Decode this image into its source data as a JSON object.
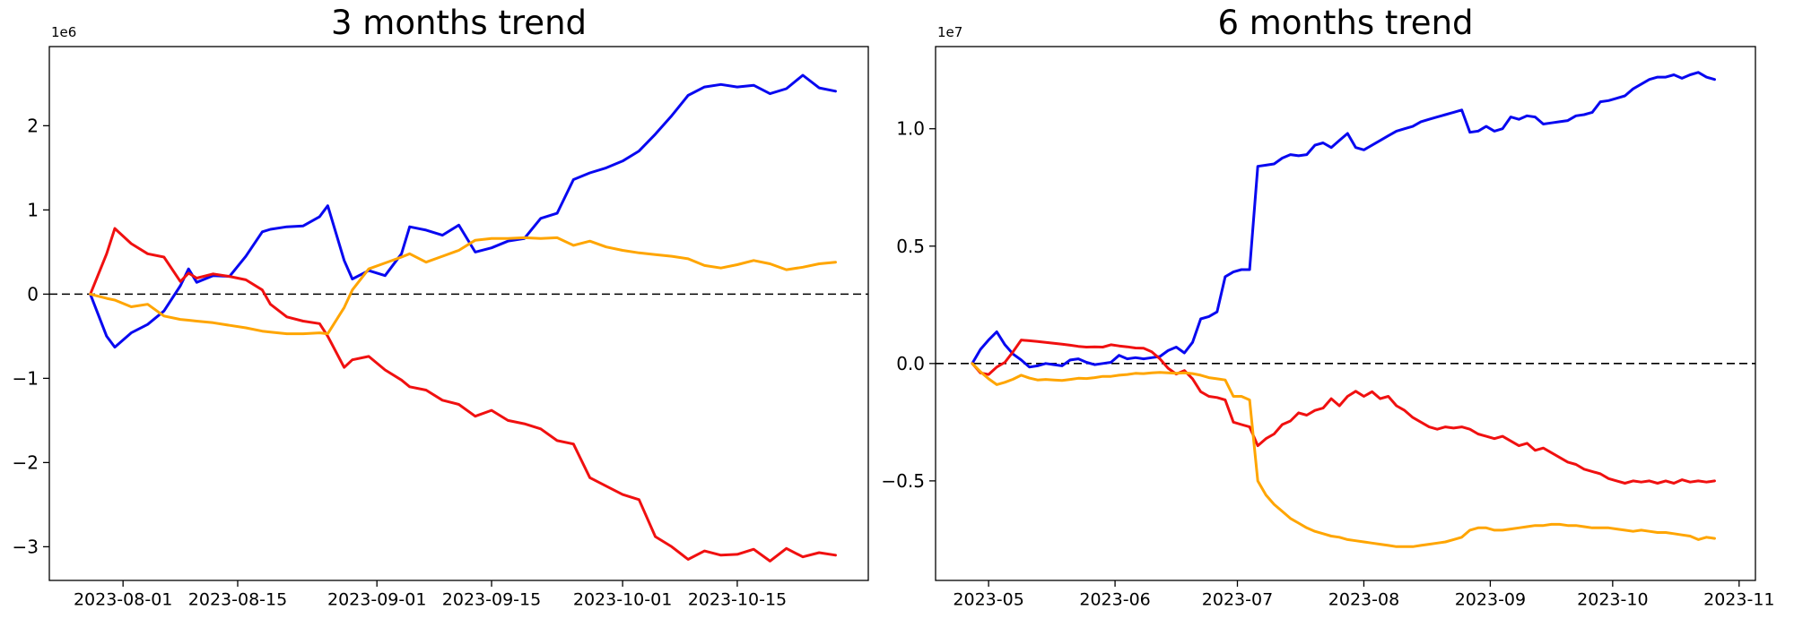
{
  "figure": {
    "background": "#ffffff",
    "text_color": "#000000",
    "axis_color": "#000000"
  },
  "chart_data": [
    {
      "type": "line",
      "title": "3 months trend",
      "y_offset_label": "1e6",
      "y_unit_multiplier": 1000000,
      "grid": false,
      "legend_position": "none",
      "zero_line_dashed": true,
      "xlim": [
        "2023-07-23",
        "2023-10-31"
      ],
      "ylim": [
        -3.4,
        2.94
      ],
      "x_ticks": [
        {
          "label": "2023-08-01",
          "date": "2023-08-01"
        },
        {
          "label": "2023-08-15",
          "date": "2023-08-15"
        },
        {
          "label": "2023-09-01",
          "date": "2023-09-01"
        },
        {
          "label": "2023-09-15",
          "date": "2023-09-15"
        },
        {
          "label": "2023-10-01",
          "date": "2023-10-01"
        },
        {
          "label": "2023-10-15",
          "date": "2023-10-15"
        }
      ],
      "y_ticks": [
        {
          "label": "2",
          "value": 2
        },
        {
          "label": "1",
          "value": 1
        },
        {
          "label": "0",
          "value": 0
        },
        {
          "label": "−1",
          "value": -1
        },
        {
          "label": "−2",
          "value": -2
        },
        {
          "label": "−3",
          "value": -3
        }
      ],
      "x": [
        "2023-07-28",
        "2023-07-30",
        "2023-07-31",
        "2023-08-02",
        "2023-08-04",
        "2023-08-06",
        "2023-08-08",
        "2023-08-09",
        "2023-08-10",
        "2023-08-12",
        "2023-08-14",
        "2023-08-16",
        "2023-08-18",
        "2023-08-19",
        "2023-08-21",
        "2023-08-23",
        "2023-08-25",
        "2023-08-26",
        "2023-08-28",
        "2023-08-29",
        "2023-08-31",
        "2023-09-02",
        "2023-09-04",
        "2023-09-05",
        "2023-09-07",
        "2023-09-09",
        "2023-09-11",
        "2023-09-13",
        "2023-09-15",
        "2023-09-17",
        "2023-09-19",
        "2023-09-21",
        "2023-09-23",
        "2023-09-25",
        "2023-09-27",
        "2023-09-29",
        "2023-10-01",
        "2023-10-03",
        "2023-10-05",
        "2023-10-07",
        "2023-10-09",
        "2023-10-11",
        "2023-10-13",
        "2023-10-15",
        "2023-10-17",
        "2023-10-19",
        "2023-10-21",
        "2023-10-23",
        "2023-10-25",
        "2023-10-27"
      ],
      "series": [
        {
          "name": "blue",
          "color": "#0808f0",
          "values": [
            0.0,
            -0.5,
            -0.63,
            -0.46,
            -0.36,
            -0.2,
            0.1,
            0.3,
            0.14,
            0.22,
            0.21,
            0.45,
            0.74,
            0.77,
            0.8,
            0.81,
            0.92,
            1.05,
            0.4,
            0.18,
            0.28,
            0.22,
            0.48,
            0.8,
            0.76,
            0.7,
            0.82,
            0.5,
            0.55,
            0.63,
            0.66,
            0.9,
            0.96,
            1.36,
            1.44,
            1.5,
            1.58,
            1.7,
            1.9,
            2.12,
            2.36,
            2.46,
            2.49,
            2.46,
            2.48,
            2.38,
            2.44,
            2.6,
            2.45,
            2.41
          ]
        },
        {
          "name": "red",
          "color": "#f01010",
          "values": [
            0.0,
            0.48,
            0.78,
            0.6,
            0.48,
            0.44,
            0.15,
            0.25,
            0.19,
            0.24,
            0.21,
            0.17,
            0.05,
            -0.12,
            -0.27,
            -0.32,
            -0.35,
            -0.5,
            -0.87,
            -0.78,
            -0.74,
            -0.9,
            -1.02,
            -1.1,
            -1.14,
            -1.26,
            -1.31,
            -1.45,
            -1.38,
            -1.5,
            -1.54,
            -1.6,
            -1.74,
            -1.78,
            -2.18,
            -2.28,
            -2.38,
            -2.44,
            -2.88,
            -3.0,
            -3.15,
            -3.05,
            -3.1,
            -3.09,
            -3.03,
            -3.17,
            -3.02,
            -3.12,
            -3.07,
            -3.1
          ]
        },
        {
          "name": "orange",
          "color": "#ffa500",
          "values": [
            0.0,
            -0.05,
            -0.07,
            -0.15,
            -0.12,
            -0.26,
            -0.3,
            -0.31,
            -0.32,
            -0.34,
            -0.37,
            -0.4,
            -0.44,
            -0.45,
            -0.47,
            -0.47,
            -0.46,
            -0.47,
            -0.16,
            0.05,
            0.3,
            0.37,
            0.44,
            0.48,
            0.38,
            0.45,
            0.52,
            0.64,
            0.66,
            0.66,
            0.67,
            0.66,
            0.67,
            0.58,
            0.63,
            0.56,
            0.52,
            0.49,
            0.47,
            0.45,
            0.42,
            0.34,
            0.31,
            0.35,
            0.4,
            0.36,
            0.29,
            0.32,
            0.36,
            0.38
          ]
        }
      ]
    },
    {
      "type": "line",
      "title": "6 months trend",
      "y_offset_label": "1e7",
      "y_unit_multiplier": 10000000,
      "grid": false,
      "legend_position": "none",
      "zero_line_dashed": true,
      "xlim": [
        "2023-04-18",
        "2023-11-05"
      ],
      "ylim": [
        -0.924,
        1.35
      ],
      "x_ticks": [
        {
          "label": "2023-05",
          "date": "2023-05-01"
        },
        {
          "label": "2023-06",
          "date": "2023-06-01"
        },
        {
          "label": "2023-07",
          "date": "2023-07-01"
        },
        {
          "label": "2023-08",
          "date": "2023-08-01"
        },
        {
          "label": "2023-09",
          "date": "2023-09-01"
        },
        {
          "label": "2023-10",
          "date": "2023-10-01"
        },
        {
          "label": "2023-11",
          "date": "2023-11-01"
        }
      ],
      "y_ticks": [
        {
          "label": "1.0",
          "value": 1.0
        },
        {
          "label": "0.5",
          "value": 0.5
        },
        {
          "label": "0.0",
          "value": 0.0
        },
        {
          "label": "−0.5",
          "value": -0.5
        }
      ],
      "x": [
        "2023-04-27",
        "2023-04-29",
        "2023-05-01",
        "2023-05-03",
        "2023-05-05",
        "2023-05-07",
        "2023-05-09",
        "2023-05-11",
        "2023-05-13",
        "2023-05-15",
        "2023-05-17",
        "2023-05-19",
        "2023-05-21",
        "2023-05-23",
        "2023-05-25",
        "2023-05-27",
        "2023-05-29",
        "2023-05-31",
        "2023-06-02",
        "2023-06-04",
        "2023-06-06",
        "2023-06-08",
        "2023-06-10",
        "2023-06-12",
        "2023-06-14",
        "2023-06-16",
        "2023-06-18",
        "2023-06-20",
        "2023-06-22",
        "2023-06-24",
        "2023-06-26",
        "2023-06-28",
        "2023-06-30",
        "2023-07-02",
        "2023-07-04",
        "2023-07-06",
        "2023-07-08",
        "2023-07-10",
        "2023-07-12",
        "2023-07-14",
        "2023-07-16",
        "2023-07-18",
        "2023-07-20",
        "2023-07-22",
        "2023-07-24",
        "2023-07-26",
        "2023-07-28",
        "2023-07-30",
        "2023-08-01",
        "2023-08-03",
        "2023-08-05",
        "2023-08-07",
        "2023-08-09",
        "2023-08-11",
        "2023-08-13",
        "2023-08-15",
        "2023-08-17",
        "2023-08-19",
        "2023-08-21",
        "2023-08-23",
        "2023-08-25",
        "2023-08-27",
        "2023-08-29",
        "2023-08-31",
        "2023-09-02",
        "2023-09-04",
        "2023-09-06",
        "2023-09-08",
        "2023-09-10",
        "2023-09-12",
        "2023-09-14",
        "2023-09-16",
        "2023-09-18",
        "2023-09-20",
        "2023-09-22",
        "2023-09-24",
        "2023-09-26",
        "2023-09-28",
        "2023-09-30",
        "2023-10-02",
        "2023-10-04",
        "2023-10-06",
        "2023-10-08",
        "2023-10-10",
        "2023-10-12",
        "2023-10-14",
        "2023-10-16",
        "2023-10-18",
        "2023-10-20",
        "2023-10-22",
        "2023-10-24",
        "2023-10-26"
      ],
      "series": [
        {
          "name": "blue",
          "color": "#0808f0",
          "values": [
            0.0,
            0.06,
            0.1,
            0.135,
            0.08,
            0.04,
            0.015,
            -0.015,
            -0.01,
            0.0,
            -0.005,
            -0.01,
            0.015,
            0.02,
            0.005,
            -0.005,
            0.0,
            0.005,
            0.035,
            0.02,
            0.025,
            0.02,
            0.025,
            0.03,
            0.055,
            0.07,
            0.045,
            0.09,
            0.19,
            0.2,
            0.22,
            0.37,
            0.39,
            0.4,
            0.4,
            0.84,
            0.845,
            0.85,
            0.875,
            0.89,
            0.885,
            0.89,
            0.93,
            0.94,
            0.92,
            0.95,
            0.98,
            0.92,
            0.91,
            0.93,
            0.95,
            0.97,
            0.99,
            1.0,
            1.01,
            1.03,
            1.04,
            1.05,
            1.06,
            1.07,
            1.08,
            0.985,
            0.99,
            1.01,
            0.99,
            1.0,
            1.05,
            1.04,
            1.055,
            1.05,
            1.02,
            1.025,
            1.03,
            1.035,
            1.055,
            1.06,
            1.07,
            1.115,
            1.12,
            1.13,
            1.14,
            1.17,
            1.19,
            1.21,
            1.22,
            1.22,
            1.23,
            1.215,
            1.23,
            1.24,
            1.22,
            1.21
          ]
        },
        {
          "name": "red",
          "color": "#f01010",
          "values": [
            0.0,
            -0.04,
            -0.047,
            -0.015,
            0.005,
            0.05,
            0.1,
            0.097,
            0.094,
            0.09,
            0.086,
            0.082,
            0.078,
            0.073,
            0.07,
            0.071,
            0.07,
            0.08,
            0.075,
            0.071,
            0.066,
            0.065,
            0.05,
            0.02,
            -0.02,
            -0.045,
            -0.03,
            -0.065,
            -0.12,
            -0.14,
            -0.145,
            -0.155,
            -0.25,
            -0.26,
            -0.27,
            -0.35,
            -0.32,
            -0.3,
            -0.26,
            -0.245,
            -0.21,
            -0.22,
            -0.2,
            -0.19,
            -0.15,
            -0.18,
            -0.14,
            -0.118,
            -0.14,
            -0.12,
            -0.15,
            -0.14,
            -0.18,
            -0.2,
            -0.23,
            -0.25,
            -0.27,
            -0.28,
            -0.27,
            -0.275,
            -0.27,
            -0.28,
            -0.3,
            -0.31,
            -0.32,
            -0.31,
            -0.33,
            -0.35,
            -0.34,
            -0.37,
            -0.36,
            -0.38,
            -0.4,
            -0.42,
            -0.43,
            -0.45,
            -0.46,
            -0.47,
            -0.49,
            -0.5,
            -0.51,
            -0.5,
            -0.505,
            -0.5,
            -0.51,
            -0.5,
            -0.51,
            -0.495,
            -0.505,
            -0.5,
            -0.505,
            -0.5
          ]
        },
        {
          "name": "orange",
          "color": "#ffa500",
          "values": [
            0.0,
            -0.035,
            -0.065,
            -0.09,
            -0.08,
            -0.067,
            -0.05,
            -0.062,
            -0.07,
            -0.068,
            -0.07,
            -0.072,
            -0.068,
            -0.063,
            -0.064,
            -0.06,
            -0.055,
            -0.055,
            -0.05,
            -0.047,
            -0.042,
            -0.043,
            -0.04,
            -0.038,
            -0.04,
            -0.042,
            -0.04,
            -0.043,
            -0.05,
            -0.06,
            -0.065,
            -0.07,
            -0.14,
            -0.14,
            -0.155,
            -0.5,
            -0.56,
            -0.6,
            -0.63,
            -0.66,
            -0.68,
            -0.7,
            -0.715,
            -0.725,
            -0.735,
            -0.74,
            -0.75,
            -0.755,
            -0.76,
            -0.765,
            -0.77,
            -0.775,
            -0.78,
            -0.78,
            -0.78,
            -0.775,
            -0.77,
            -0.765,
            -0.76,
            -0.75,
            -0.74,
            -0.71,
            -0.7,
            -0.7,
            -0.71,
            -0.71,
            -0.705,
            -0.7,
            -0.695,
            -0.69,
            -0.69,
            -0.685,
            -0.685,
            -0.69,
            -0.69,
            -0.695,
            -0.7,
            -0.7,
            -0.7,
            -0.705,
            -0.71,
            -0.715,
            -0.71,
            -0.715,
            -0.72,
            -0.72,
            -0.725,
            -0.73,
            -0.735,
            -0.75,
            -0.74,
            -0.745
          ]
        }
      ]
    }
  ]
}
